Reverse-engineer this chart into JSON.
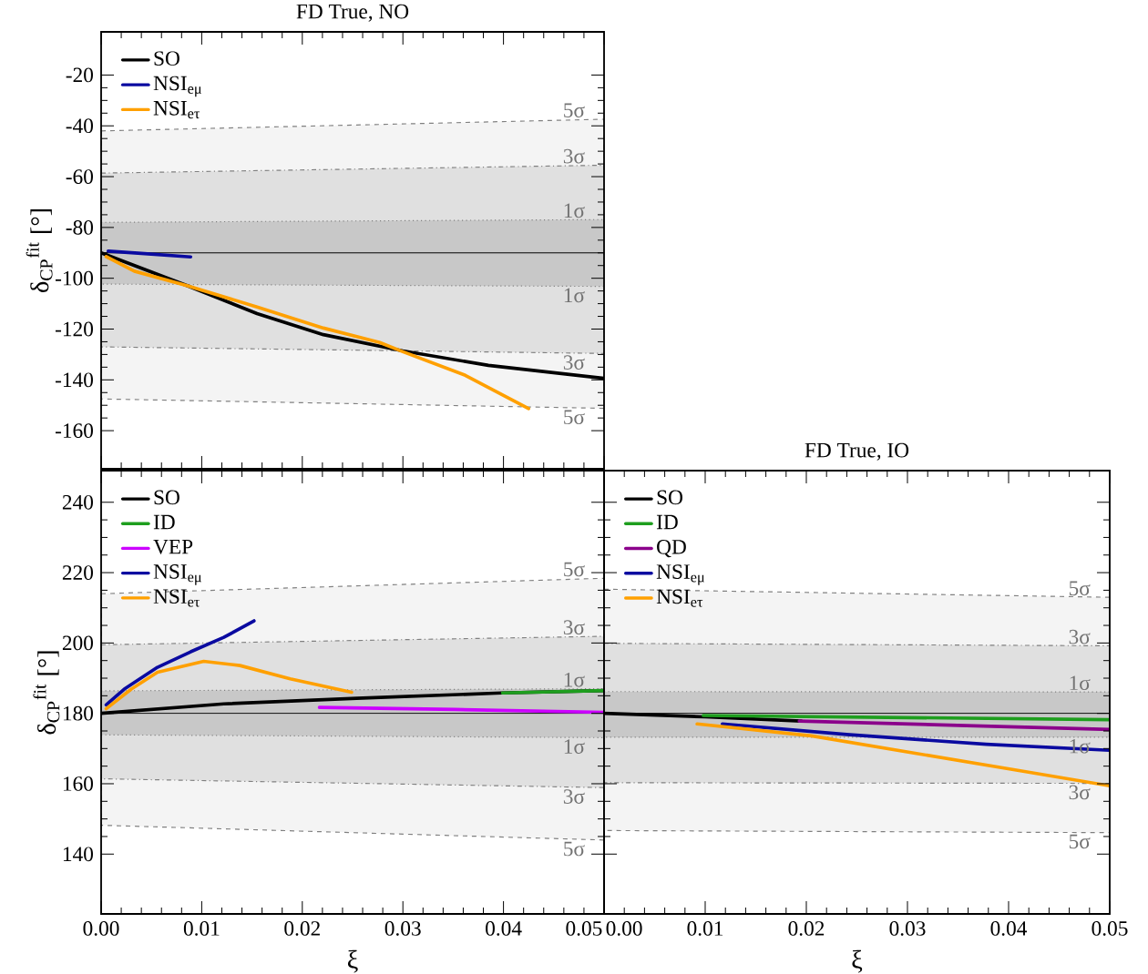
{
  "chart_data": [
    {
      "type": "line",
      "title": "FD True, NO",
      "ylabel": "δ$_{CP}$$^{fit}$ [°]",
      "xlim": [
        0,
        0.05
      ],
      "xticks": [
        0,
        0.01,
        0.02,
        0.03,
        0.04,
        0.05
      ],
      "ylim": [
        -175,
        -3
      ],
      "yticks": [
        -160,
        -140,
        -120,
        -100,
        -80,
        -60,
        -40,
        -20
      ],
      "tick_labels": "y",
      "legend": "top left",
      "series": [
        {
          "x": [
            0,
            0.05
          ],
          "values": [
            null,
            null
          ],
          "lower": [
            -147.5,
            -151.2
          ],
          "upper": [
            -42,
            -37.4
          ],
          "color": "#f4f4f4",
          "line_style": "dashed"
        },
        {
          "x": [
            0,
            0.05
          ],
          "values": [
            null,
            null
          ],
          "lower": [
            -127,
            -129.6
          ],
          "upper": [
            -58.6,
            -55.5
          ],
          "color": "#e0e0e0",
          "line_style": "dashdot"
        },
        {
          "x": [
            0,
            0.05
          ],
          "values": [
            null,
            null
          ],
          "lower": [
            -102.3,
            -103.2
          ],
          "upper": [
            -78,
            -76.9
          ],
          "color": "#c8c8c8",
          "line_style": "dotted"
        },
        {
          "x": [
            0,
            0.05
          ],
          "values": [
            -90,
            -90
          ],
          "color": "#000000"
        },
        {
          "name": "SO",
          "color": "#000000",
          "x": [
            0,
            0.0086,
            0.0155,
            0.0221,
            0.03,
            0.0385,
            0.05
          ],
          "values": [
            -90,
            -103,
            -113.9,
            -122.2,
            -128.6,
            -134.3,
            -139.4
          ]
        },
        {
          "name": "NSI$_{eμ}$",
          "color": "#0a0aa0",
          "x": [
            0.0007,
            0.004,
            0.0089
          ],
          "values": [
            -89.3,
            -90.2,
            -91.6
          ]
        },
        {
          "name": "NSI$_{eτ}$",
          "color": "#ffa000",
          "x": [
            0.0005,
            0.0033,
            0.0086,
            0.0155,
            0.0221,
            0.0277,
            0.03,
            0.0362,
            0.0425
          ],
          "values": [
            -91.5,
            -97.2,
            -103,
            -111.3,
            -119.6,
            -125.3,
            -128.9,
            -138.2,
            -151.3
          ]
        }
      ],
      "annotations": [
        "5σ",
        "3σ",
        "1σ",
        "1σ",
        "3σ",
        "5σ"
      ]
    },
    {
      "type": "line",
      "xlabel": "ξ",
      "ylabel": "δ$_{CP}$$^{fit}$ [°]",
      "xlim": [
        0,
        0.05
      ],
      "xticks": [
        {
          "value": 0,
          "label": "0.00"
        },
        {
          "value": 0.01,
          "label": "0.01"
        },
        {
          "value": 0.02,
          "label": "0.02"
        },
        {
          "value": 0.03,
          "label": "0.03"
        },
        {
          "value": 0.04,
          "label": "0.04"
        },
        {
          "value": 0.05,
          "label": "0.05"
        }
      ],
      "ylim": [
        123,
        249
      ],
      "yticks": [
        140,
        160,
        180,
        200,
        220,
        240
      ],
      "legend": "top left",
      "series": [
        {
          "x": [
            0,
            0.05
          ],
          "values": [
            null,
            null
          ],
          "lower": [
            148.2,
            144
          ],
          "upper": [
            214,
            218.4
          ],
          "color": "#f4f4f4",
          "line_style": "dashed"
        },
        {
          "x": [
            0,
            0.05
          ],
          "values": [
            null,
            null
          ],
          "lower": [
            161.4,
            158.9
          ],
          "upper": [
            199.5,
            201.9
          ],
          "color": "#e0e0e0",
          "line_style": "dashdot"
        },
        {
          "x": [
            0,
            0.05
          ],
          "values": [
            null,
            null
          ],
          "lower": [
            173.9,
            173.1
          ],
          "upper": [
            186.4,
            187
          ],
          "color": "#c8c8c8",
          "line_style": "dotted"
        },
        {
          "x": [
            0,
            0.05
          ],
          "values": [
            180,
            180
          ],
          "color": "#000000"
        },
        {
          "name": "SO",
          "color": "#000000",
          "x": [
            0,
            0.0122,
            0.0254,
            0.0398,
            0.05
          ],
          "values": [
            180,
            182.7,
            184.3,
            185.8,
            186.5
          ]
        },
        {
          "name": "ID",
          "color": "#1e9e1e",
          "x": [
            0.0399,
            0.05
          ],
          "values": [
            185.8,
            186.5
          ]
        },
        {
          "name": "VEP",
          "color": "#cc00ff",
          "x": [
            0.0217,
            0.0352,
            0.05
          ],
          "values": [
            181.7,
            181.1,
            180.3
          ]
        },
        {
          "name": "NSI$_{eμ}$",
          "color": "#0a0aa0",
          "x": [
            0.0005,
            0.0023,
            0.0056,
            0.0089,
            0.0122,
            0.0152
          ],
          "values": [
            182.4,
            186.9,
            193.1,
            197.5,
            201.6,
            206.3
          ]
        },
        {
          "name": "NSI$_{eτ}$",
          "color": "#ffa000",
          "x": [
            0.0005,
            0.003,
            0.0056,
            0.0102,
            0.0138,
            0.0188,
            0.0249
          ],
          "values": [
            181.3,
            186.9,
            191.7,
            194.8,
            193.6,
            189.8,
            186
          ]
        }
      ],
      "annotations": [
        "5σ",
        "3σ",
        "1σ",
        "1σ",
        "3σ",
        "5σ"
      ]
    },
    {
      "type": "line",
      "title": "FD True, IO",
      "xlabel": "ξ",
      "xlim": [
        0,
        0.05
      ],
      "xticks": [
        {
          "value": 0,
          "label": "0.00"
        },
        {
          "value": 0.01,
          "label": "0.01"
        },
        {
          "value": 0.02,
          "label": "0.02"
        },
        {
          "value": 0.03,
          "label": "0.03"
        },
        {
          "value": 0.04,
          "label": "0.04"
        },
        {
          "value": 0.05,
          "label": "0.05"
        }
      ],
      "ylim": [
        123,
        249
      ],
      "yticks": [
        140,
        160,
        180,
        200,
        220,
        240
      ],
      "tick_labels": "x",
      "legend": "top left",
      "series": [
        {
          "x": [
            0,
            0.05
          ],
          "values": [
            null,
            null
          ],
          "lower": [
            146.7,
            146.1
          ],
          "upper": [
            215.3,
            213
          ],
          "color": "#f4f4f4",
          "line_style": "dashed"
        },
        {
          "x": [
            0,
            0.05
          ],
          "values": [
            null,
            null
          ],
          "lower": [
            160.3,
            160.1
          ],
          "upper": [
            199.9,
            199.2
          ],
          "color": "#e0e0e0",
          "line_style": "dashdot"
        },
        {
          "x": [
            0,
            0.05
          ],
          "values": [
            null,
            null
          ],
          "lower": [
            173.2,
            173.2
          ],
          "upper": [
            186.2,
            186.1
          ],
          "color": "#c8c8c8",
          "line_style": "dotted"
        },
        {
          "x": [
            0,
            0.05
          ],
          "values": [
            180,
            180
          ],
          "color": "#000000"
        },
        {
          "name": "SO",
          "color": "#000000",
          "x": [
            0,
            0.01,
            0.0195
          ],
          "values": [
            180,
            179,
            177.8
          ]
        },
        {
          "name": "ID",
          "color": "#1e9e1e",
          "x": [
            0.0098,
            0.05
          ],
          "values": [
            179.4,
            178.2
          ]
        },
        {
          "name": "QD",
          "color": "#8b008b",
          "x": [
            0.0193,
            0.035,
            0.05
          ],
          "values": [
            177.8,
            176.6,
            175.4
          ]
        },
        {
          "name": "NSI$_{eμ}$",
          "color": "#0a0aa0",
          "x": [
            0.0117,
            0.024,
            0.0378,
            0.05
          ],
          "values": [
            177,
            174,
            171.2,
            169.5
          ]
        },
        {
          "name": "NSI$_{eτ}$",
          "color": "#ffa000",
          "x": [
            0.0092,
            0.0205,
            0.0309,
            0.0413,
            0.05
          ],
          "values": [
            177,
            173.6,
            168.6,
            163.6,
            159.4
          ]
        }
      ],
      "annotations": [
        "5σ",
        "3σ",
        "1σ",
        "1σ",
        "3σ",
        "5σ"
      ]
    }
  ]
}
